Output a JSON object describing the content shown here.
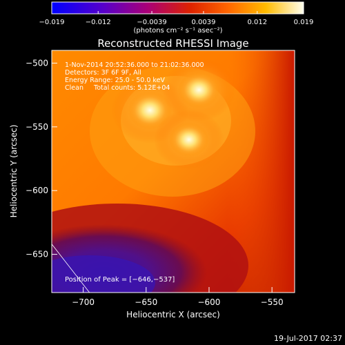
{
  "chart_data": {
    "type": "heatmap",
    "title": "Reconstructed RHESSI Image",
    "xlabel": "Heliocentric X (arcsec)",
    "ylabel": "Heliocentric Y (arcsec)",
    "xlim": [
      -725,
      -532
    ],
    "ylim": [
      -680,
      -490
    ],
    "x_ticks": [
      -700,
      -650,
      -600,
      -550
    ],
    "x_tick_labels": [
      "−700",
      "−650",
      "−600",
      "−550"
    ],
    "y_ticks": [
      -500,
      -550,
      -600,
      -650
    ],
    "y_tick_labels": [
      "−500",
      "−550",
      "−600",
      "−650"
    ],
    "colorbar": {
      "range": [
        -0.019,
        0.019
      ],
      "ticks": [
        -0.019,
        -0.012,
        -0.0039,
        0.0039,
        0.012,
        0.019
      ],
      "tick_labels": [
        "−0.019",
        "−0.012",
        "−0.0039",
        "0.0039",
        "0.012",
        "0.019"
      ],
      "units": "(photons cm⁻² s⁻¹ asec⁻²)",
      "colors": [
        "#0000ff",
        "#5500cc",
        "#aa0077",
        "#dd2200",
        "#ff6600",
        "#ffbb00",
        "#ffffee"
      ]
    },
    "annotations": [
      "1-Nov-2014 20:52:36.000 to 21:02:36.000",
      "Detectors: 3F 6F 9F, All",
      "Energy Range: 25.0 - 50.0 keV",
      "Clean     Total counts: 5.12E+04"
    ],
    "peak_label": "Position of Peak = [−646,−537]",
    "peak": [
      -646,
      -537
    ],
    "sources": [
      {
        "x": -647,
        "y": -537,
        "intensity": 0.019
      },
      {
        "x": -608,
        "y": -521,
        "intensity": 0.017
      },
      {
        "x": -616,
        "y": -560,
        "intensity": 0.015
      }
    ],
    "limb_line": {
      "x": [
        -725,
        -695
      ],
      "y": [
        -642,
        -680
      ]
    }
  },
  "timestamp": "19-Jul-2017 02:37"
}
